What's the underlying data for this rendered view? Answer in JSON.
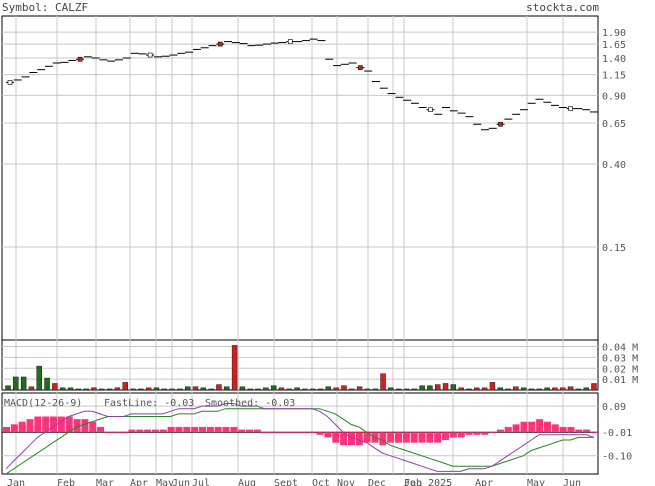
{
  "header": {
    "symbol_text": "Symbol: CALZF",
    "site": "stockta.com"
  },
  "colors": {
    "up": "#1e6e1e",
    "down": "#cc2222",
    "grid": "#c8c8c8",
    "fast": "#8844aa",
    "smooth": "#228822",
    "hist": "#ff3377",
    "axis": "#000000"
  },
  "chart_data": [
    {
      "type": "candlestick",
      "title": "",
      "y_ticks": [
        1.9,
        1.65,
        1.4,
        1.15,
        0.9,
        0.65,
        0.4,
        0.15
      ],
      "y_tick_labels": [
        "1.90",
        "1.65",
        "1.40",
        "1.15",
        "0.90",
        "0.65",
        "0.40",
        "0.15"
      ],
      "y_scale": "log",
      "ylim": [
        0.05,
        2.3
      ],
      "x_labels": [
        "Jan",
        "Feb",
        "Mar",
        "Apr",
        "May",
        "Jun",
        "Jul",
        "Aug",
        "Sept",
        "Oct",
        "Nov",
        "Dec",
        "Jan 2025",
        "Feb",
        "Apr",
        "May",
        "Jun"
      ],
      "close": [
        1.05,
        1.08,
        1.12,
        1.18,
        1.22,
        1.27,
        1.32,
        1.33,
        1.36,
        1.38,
        1.42,
        1.4,
        1.37,
        1.35,
        1.37,
        1.4,
        1.48,
        1.47,
        1.45,
        1.42,
        1.43,
        1.45,
        1.48,
        1.5,
        1.55,
        1.58,
        1.62,
        1.65,
        1.7,
        1.68,
        1.66,
        1.62,
        1.63,
        1.65,
        1.67,
        1.68,
        1.7,
        1.7,
        1.72,
        1.75,
        1.72,
        1.38,
        1.28,
        1.3,
        1.32,
        1.25,
        1.2,
        1.06,
        0.98,
        0.92,
        0.88,
        0.85,
        0.82,
        0.78,
        0.76,
        0.72,
        0.78,
        0.75,
        0.73,
        0.7,
        0.64,
        0.6,
        0.61,
        0.64,
        0.68,
        0.72,
        0.76,
        0.82,
        0.86,
        0.83,
        0.8,
        0.78,
        0.77,
        0.77,
        0.76,
        0.74
      ]
    },
    {
      "type": "bar",
      "title": "",
      "y_tick_labels": [
        "0.04 M",
        "0.03 M",
        "0.02 M",
        "0.01 M"
      ],
      "ylim": [
        0,
        0.046
      ],
      "values": [
        0.004,
        0.012,
        0.012,
        0.003,
        0.022,
        0.011,
        0.006,
        0.002,
        0.002,
        0.001,
        0.001,
        0.002,
        0.001,
        0.001,
        0.002,
        0.007,
        0.001,
        0.001,
        0.002,
        0.002,
        0.001,
        0.001,
        0.001,
        0.003,
        0.003,
        0.002,
        0.001,
        0.005,
        0.003,
        0.041,
        0.003,
        0.001,
        0.001,
        0.002,
        0.004,
        0.002,
        0.001,
        0.002,
        0.001,
        0.001,
        0.001,
        0.003,
        0.002,
        0.004,
        0.001,
        0.003,
        0.001,
        0.001,
        0.015,
        0.002,
        0.001,
        0.001,
        0.001,
        0.004,
        0.004,
        0.005,
        0.006,
        0.005,
        0.002,
        0.001,
        0.002,
        0.002,
        0.007,
        0.002,
        0.001,
        0.003,
        0.002,
        0.001,
        0.001,
        0.002,
        0.002,
        0.002,
        0.003,
        0.001,
        0.002,
        0.006
      ],
      "up": [
        1,
        1,
        1,
        0,
        1,
        1,
        0,
        1,
        1,
        0,
        1,
        0,
        1,
        1,
        0,
        0,
        1,
        1,
        0,
        1,
        1,
        0,
        1,
        1,
        0,
        1,
        1,
        0,
        1,
        0,
        1,
        1,
        1,
        1,
        1,
        0,
        1,
        1,
        0,
        1,
        1,
        1,
        0,
        0,
        1,
        0,
        1,
        0,
        0,
        1,
        1,
        0,
        0,
        1,
        1,
        0,
        0,
        1,
        0,
        1,
        0,
        0,
        0,
        1,
        0,
        0,
        1,
        1,
        0,
        1,
        0,
        0,
        0,
        1,
        1,
        0
      ]
    },
    {
      "type": "line",
      "title": "MACD(12-26-9)",
      "legend": [
        {
          "label": "FastLine: -0.03",
          "color": "#8844aa"
        },
        {
          "label": "Smoothed: -0.03",
          "color": "#228822"
        }
      ],
      "y_tick_labels": [
        "0.09",
        "-0.01",
        "-0.10"
      ],
      "ylim": [
        -0.17,
        0.14
      ],
      "fast": [
        -0.15,
        -0.12,
        -0.09,
        -0.06,
        -0.03,
        -0.01,
        0.01,
        0.03,
        0.05,
        0.06,
        0.07,
        0.07,
        0.06,
        0.05,
        0.05,
        0.05,
        0.06,
        0.06,
        0.06,
        0.06,
        0.06,
        0.07,
        0.08,
        0.08,
        0.08,
        0.09,
        0.09,
        0.09,
        0.1,
        0.1,
        0.09,
        0.09,
        0.09,
        0.08,
        0.08,
        0.08,
        0.08,
        0.08,
        0.08,
        0.08,
        0.07,
        0.05,
        0.02,
        -0.01,
        -0.03,
        -0.04,
        -0.05,
        -0.07,
        -0.09,
        -0.1,
        -0.11,
        -0.12,
        -0.13,
        -0.14,
        -0.15,
        -0.16,
        -0.16,
        -0.16,
        -0.16,
        -0.15,
        -0.15,
        -0.15,
        -0.14,
        -0.12,
        -0.1,
        -0.08,
        -0.06,
        -0.04,
        -0.02,
        -0.02,
        -0.02,
        -0.02,
        -0.02,
        -0.02,
        -0.02,
        -0.03
      ],
      "smooth": [
        -0.17,
        -0.15,
        -0.13,
        -0.11,
        -0.09,
        -0.07,
        -0.05,
        -0.03,
        -0.01,
        0.01,
        0.02,
        0.03,
        0.04,
        0.05,
        0.05,
        0.05,
        0.05,
        0.05,
        0.05,
        0.05,
        0.05,
        0.05,
        0.06,
        0.06,
        0.06,
        0.07,
        0.07,
        0.07,
        0.08,
        0.08,
        0.08,
        0.08,
        0.08,
        0.08,
        0.08,
        0.08,
        0.08,
        0.08,
        0.08,
        0.08,
        0.08,
        0.07,
        0.06,
        0.04,
        0.02,
        0.01,
        -0.01,
        -0.03,
        -0.04,
        -0.06,
        -0.07,
        -0.08,
        -0.09,
        -0.1,
        -0.11,
        -0.12,
        -0.13,
        -0.14,
        -0.14,
        -0.14,
        -0.14,
        -0.14,
        -0.14,
        -0.13,
        -0.12,
        -0.11,
        -0.1,
        -0.08,
        -0.07,
        -0.06,
        -0.05,
        -0.04,
        -0.04,
        -0.03,
        -0.03,
        -0.03
      ],
      "hist": [
        0.02,
        0.03,
        0.04,
        0.05,
        0.06,
        0.06,
        0.06,
        0.06,
        0.06,
        0.05,
        0.05,
        0.04,
        0.02,
        0.0,
        0.0,
        0.0,
        0.01,
        0.01,
        0.01,
        0.01,
        0.01,
        0.02,
        0.02,
        0.02,
        0.02,
        0.02,
        0.02,
        0.02,
        0.02,
        0.02,
        0.01,
        0.01,
        0.01,
        0.0,
        0.0,
        0.0,
        0.0,
        0.0,
        0.0,
        0.0,
        -0.01,
        -0.02,
        -0.04,
        -0.05,
        -0.05,
        -0.05,
        -0.04,
        -0.04,
        -0.05,
        -0.04,
        -0.04,
        -0.04,
        -0.04,
        -0.04,
        -0.04,
        -0.04,
        -0.03,
        -0.02,
        -0.02,
        -0.01,
        -0.01,
        -0.01,
        0.0,
        0.01,
        0.02,
        0.03,
        0.04,
        0.04,
        0.05,
        0.04,
        0.03,
        0.02,
        0.02,
        0.01,
        0.01,
        0.0
      ]
    }
  ]
}
